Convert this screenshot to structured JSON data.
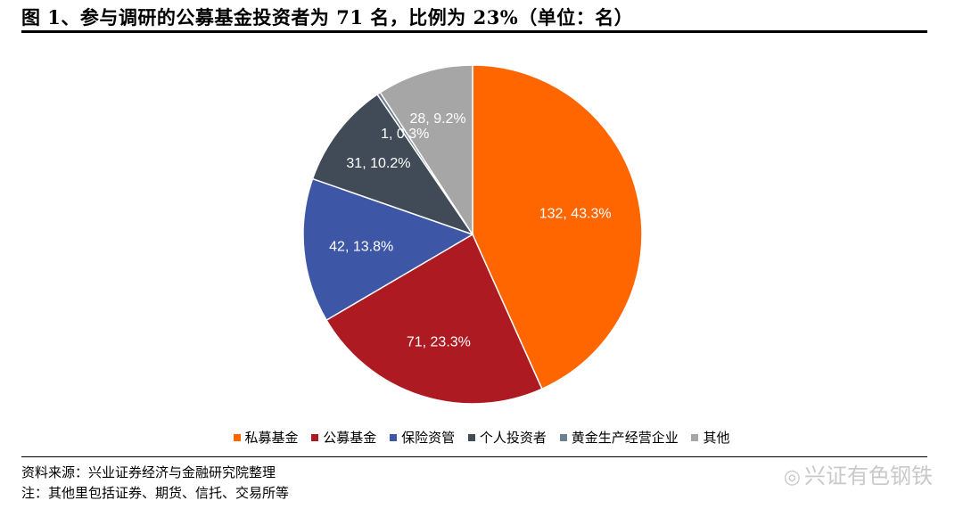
{
  "figure": {
    "title": "图 1、参与调研的公募基金投资者为 71 名，比例为 23%（单位：名）"
  },
  "chart_data": {
    "type": "pie",
    "title": "",
    "slices": [
      {
        "name": "私募基金",
        "value": 132,
        "percent": "43.3%",
        "label": "132, 43.3%",
        "color": "#ff6600"
      },
      {
        "name": "公募基金",
        "value": 71,
        "percent": "23.3%",
        "label": "71, 23.3%",
        "color": "#ad1a21"
      },
      {
        "name": "保险资管",
        "value": 42,
        "percent": "13.8%",
        "label": "42, 13.8%",
        "color": "#3d57a6"
      },
      {
        "name": "个人投资者",
        "value": 31,
        "percent": "10.2%",
        "label": "31, 10.2%",
        "color": "#404b57"
      },
      {
        "name": "黄金生产经营企业",
        "value": 1,
        "percent": "0.3%",
        "label": "1, 0.3%",
        "color": "#6d7f94"
      },
      {
        "name": "其他",
        "value": 28,
        "percent": "9.2%",
        "label": "28, 9.2%",
        "color": "#a6a6a6"
      }
    ],
    "legend_position": "bottom"
  },
  "notes": {
    "source": "资料来源：兴业证券经济与金融研究院整理",
    "other": "注：其他里包括证券、期货、信托、交易所等"
  },
  "watermark": {
    "icon": "wechat-icon",
    "text": "兴证有色钢铁"
  }
}
